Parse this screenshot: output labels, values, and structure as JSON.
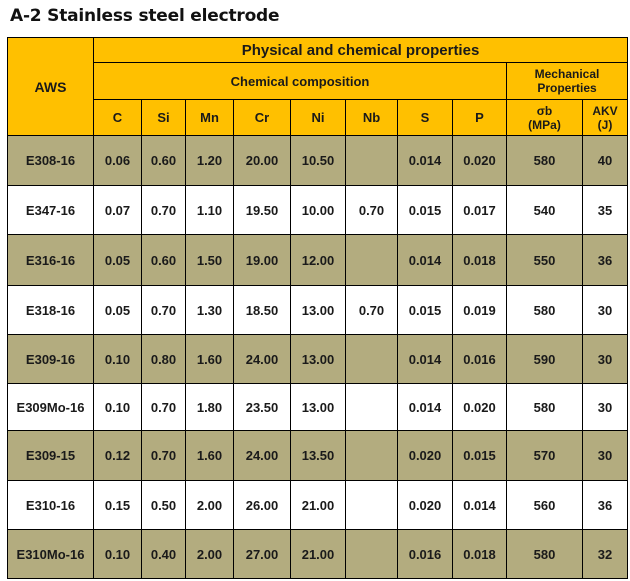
{
  "title": "A-2 Stainless steel electrode",
  "table": {
    "header": {
      "aws": "AWS",
      "group": "Physical and chemical properties",
      "chemical": "Chemical composition",
      "mechanical": "Mechanical Properties",
      "columns": [
        "C",
        "Si",
        "Mn",
        "Cr",
        "Ni",
        "Nb",
        "S",
        "P"
      ],
      "sigma_b": "σb (MPa)",
      "akv": "AKV (J)"
    },
    "colors": {
      "header_bg": "#ffc000",
      "shaded_row_bg": "#b3ac7f",
      "plain_row_bg": "#ffffff"
    },
    "rows": [
      {
        "aws": "E308-16",
        "C": "0.06",
        "Si": "0.60",
        "Mn": "1.20",
        "Cr": "20.00",
        "Ni": "10.50",
        "Nb": "",
        "S": "0.014",
        "P": "0.020",
        "sigma_b": "580",
        "akv": "40"
      },
      {
        "aws": "E347-16",
        "C": "0.07",
        "Si": "0.70",
        "Mn": "1.10",
        "Cr": "19.50",
        "Ni": "10.00",
        "Nb": "0.70",
        "S": "0.015",
        "P": "0.017",
        "sigma_b": "540",
        "akv": "35"
      },
      {
        "aws": "E316-16",
        "C": "0.05",
        "Si": "0.60",
        "Mn": "1.50",
        "Cr": "19.00",
        "Ni": "12.00",
        "Nb": "",
        "S": "0.014",
        "P": "0.018",
        "sigma_b": "550",
        "akv": "36"
      },
      {
        "aws": "E318-16",
        "C": "0.05",
        "Si": "0.70",
        "Mn": "1.30",
        "Cr": "18.50",
        "Ni": "13.00",
        "Nb": "0.70",
        "S": "0.015",
        "P": "0.019",
        "sigma_b": "580",
        "akv": "30"
      },
      {
        "aws": "E309-16",
        "C": "0.10",
        "Si": "0.80",
        "Mn": "1.60",
        "Cr": "24.00",
        "Ni": "13.00",
        "Nb": "",
        "S": "0.014",
        "P": "0.016",
        "sigma_b": "590",
        "akv": "30"
      },
      {
        "aws": "E309Mo-16",
        "C": "0.10",
        "Si": "0.70",
        "Mn": "1.80",
        "Cr": "23.50",
        "Ni": "13.00",
        "Nb": "",
        "S": "0.014",
        "P": "0.020",
        "sigma_b": "580",
        "akv": "30"
      },
      {
        "aws": "E309-15",
        "C": "0.12",
        "Si": "0.70",
        "Mn": "1.60",
        "Cr": "24.00",
        "Ni": "13.50",
        "Nb": "",
        "S": "0.020",
        "P": "0.015",
        "sigma_b": "570",
        "akv": "30"
      },
      {
        "aws": "E310-16",
        "C": "0.15",
        "Si": "0.50",
        "Mn": "2.00",
        "Cr": "26.00",
        "Ni": "21.00",
        "Nb": "",
        "S": "0.020",
        "P": "0.014",
        "sigma_b": "560",
        "akv": "36"
      },
      {
        "aws": "E310Mo-16",
        "C": "0.10",
        "Si": "0.40",
        "Mn": "2.00",
        "Cr": "27.00",
        "Ni": "21.00",
        "Nb": "",
        "S": "0.016",
        "P": "0.018",
        "sigma_b": "580",
        "akv": "32"
      }
    ]
  }
}
